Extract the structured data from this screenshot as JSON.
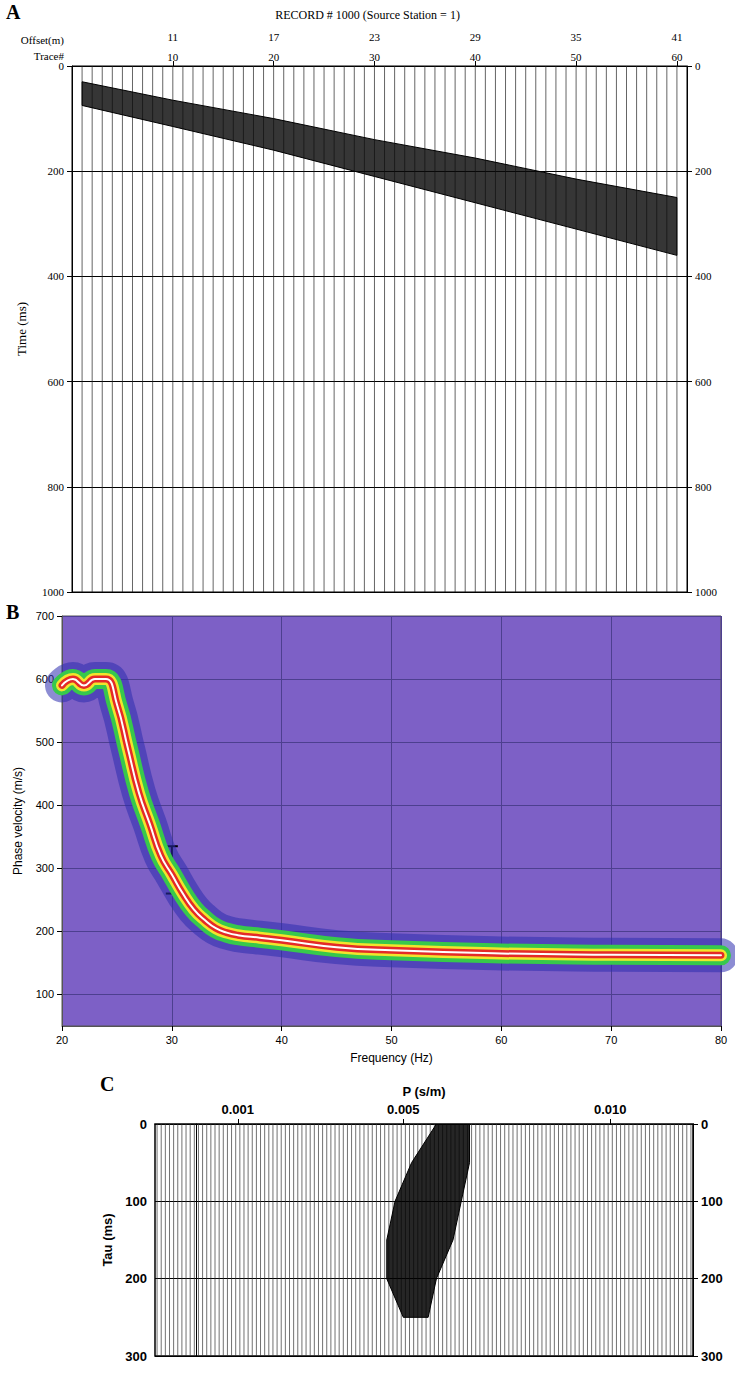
{
  "chart_data": [
    {
      "type": "wiggle",
      "panel": "A",
      "title": "RECORD # 1000 (Source Station = 1)",
      "x_label": "Trace#",
      "x2_label": "Offset(m)",
      "y_label": "Time (ms)",
      "trace_count": 60,
      "xlim": [
        0,
        61
      ],
      "xticks": [
        10,
        20,
        30,
        40,
        50,
        60
      ],
      "x2lim": [
        5,
        41.6
      ],
      "x2ticks": [
        11,
        17,
        23,
        29,
        35,
        41
      ],
      "ylim": [
        0,
        1000
      ],
      "yticks": [
        0,
        200,
        400,
        600,
        800,
        1000
      ],
      "grid": true,
      "event": {
        "x": [
          1,
          10,
          20,
          30,
          40,
          50,
          60
        ],
        "onset": [
          30,
          65,
          100,
          140,
          175,
          215,
          250
        ],
        "end": [
          75,
          115,
          160,
          210,
          260,
          310,
          360
        ]
      }
    },
    {
      "type": "dispersion",
      "panel": "B",
      "x_label": "Frequency (Hz)",
      "y_label": "Phase velocity (m/s)",
      "xlim": [
        20,
        80
      ],
      "xticks": [
        20,
        30,
        40,
        50,
        60,
        70,
        80
      ],
      "ylim": [
        50,
        700
      ],
      "yticks": [
        100,
        200,
        300,
        400,
        500,
        600,
        700
      ],
      "grid": true,
      "x": [
        20,
        21,
        22,
        23,
        24,
        25,
        26,
        27,
        28,
        29,
        30,
        31,
        32,
        33,
        34,
        35,
        36,
        38,
        40,
        45,
        50,
        60,
        70,
        80
      ],
      "values": [
        590,
        600,
        590,
        600,
        600,
        560,
        490,
        420,
        370,
        320,
        290,
        260,
        235,
        218,
        205,
        198,
        194,
        190,
        186,
        175,
        170,
        165,
        163,
        162
      ],
      "error_bars": [
        {
          "x": 30,
          "low": 260,
          "high": 335
        },
        {
          "x": 40,
          "low": 178,
          "high": 198
        }
      ]
    },
    {
      "type": "tau_p",
      "panel": "C",
      "x_label": "P (s/m)",
      "y_label": "Tau (ms)",
      "trace_count": 130,
      "xlim": [
        -0.001,
        0.012
      ],
      "xticks": [
        0.001,
        0.005,
        {
          "value": 0.01,
          "label": "0.010"
        }
      ],
      "ylim": [
        0,
        300
      ],
      "yticks": [
        0,
        100,
        200,
        300
      ],
      "grid": true,
      "event": {
        "y": [
          0,
          50,
          100,
          150,
          200,
          250
        ],
        "p_low": [
          0.0058,
          0.0052,
          0.0048,
          0.0046,
          0.0046,
          0.005
        ],
        "p_high": [
          0.0066,
          0.0066,
          0.0064,
          0.0062,
          0.0058,
          0.0056
        ]
      }
    }
  ]
}
